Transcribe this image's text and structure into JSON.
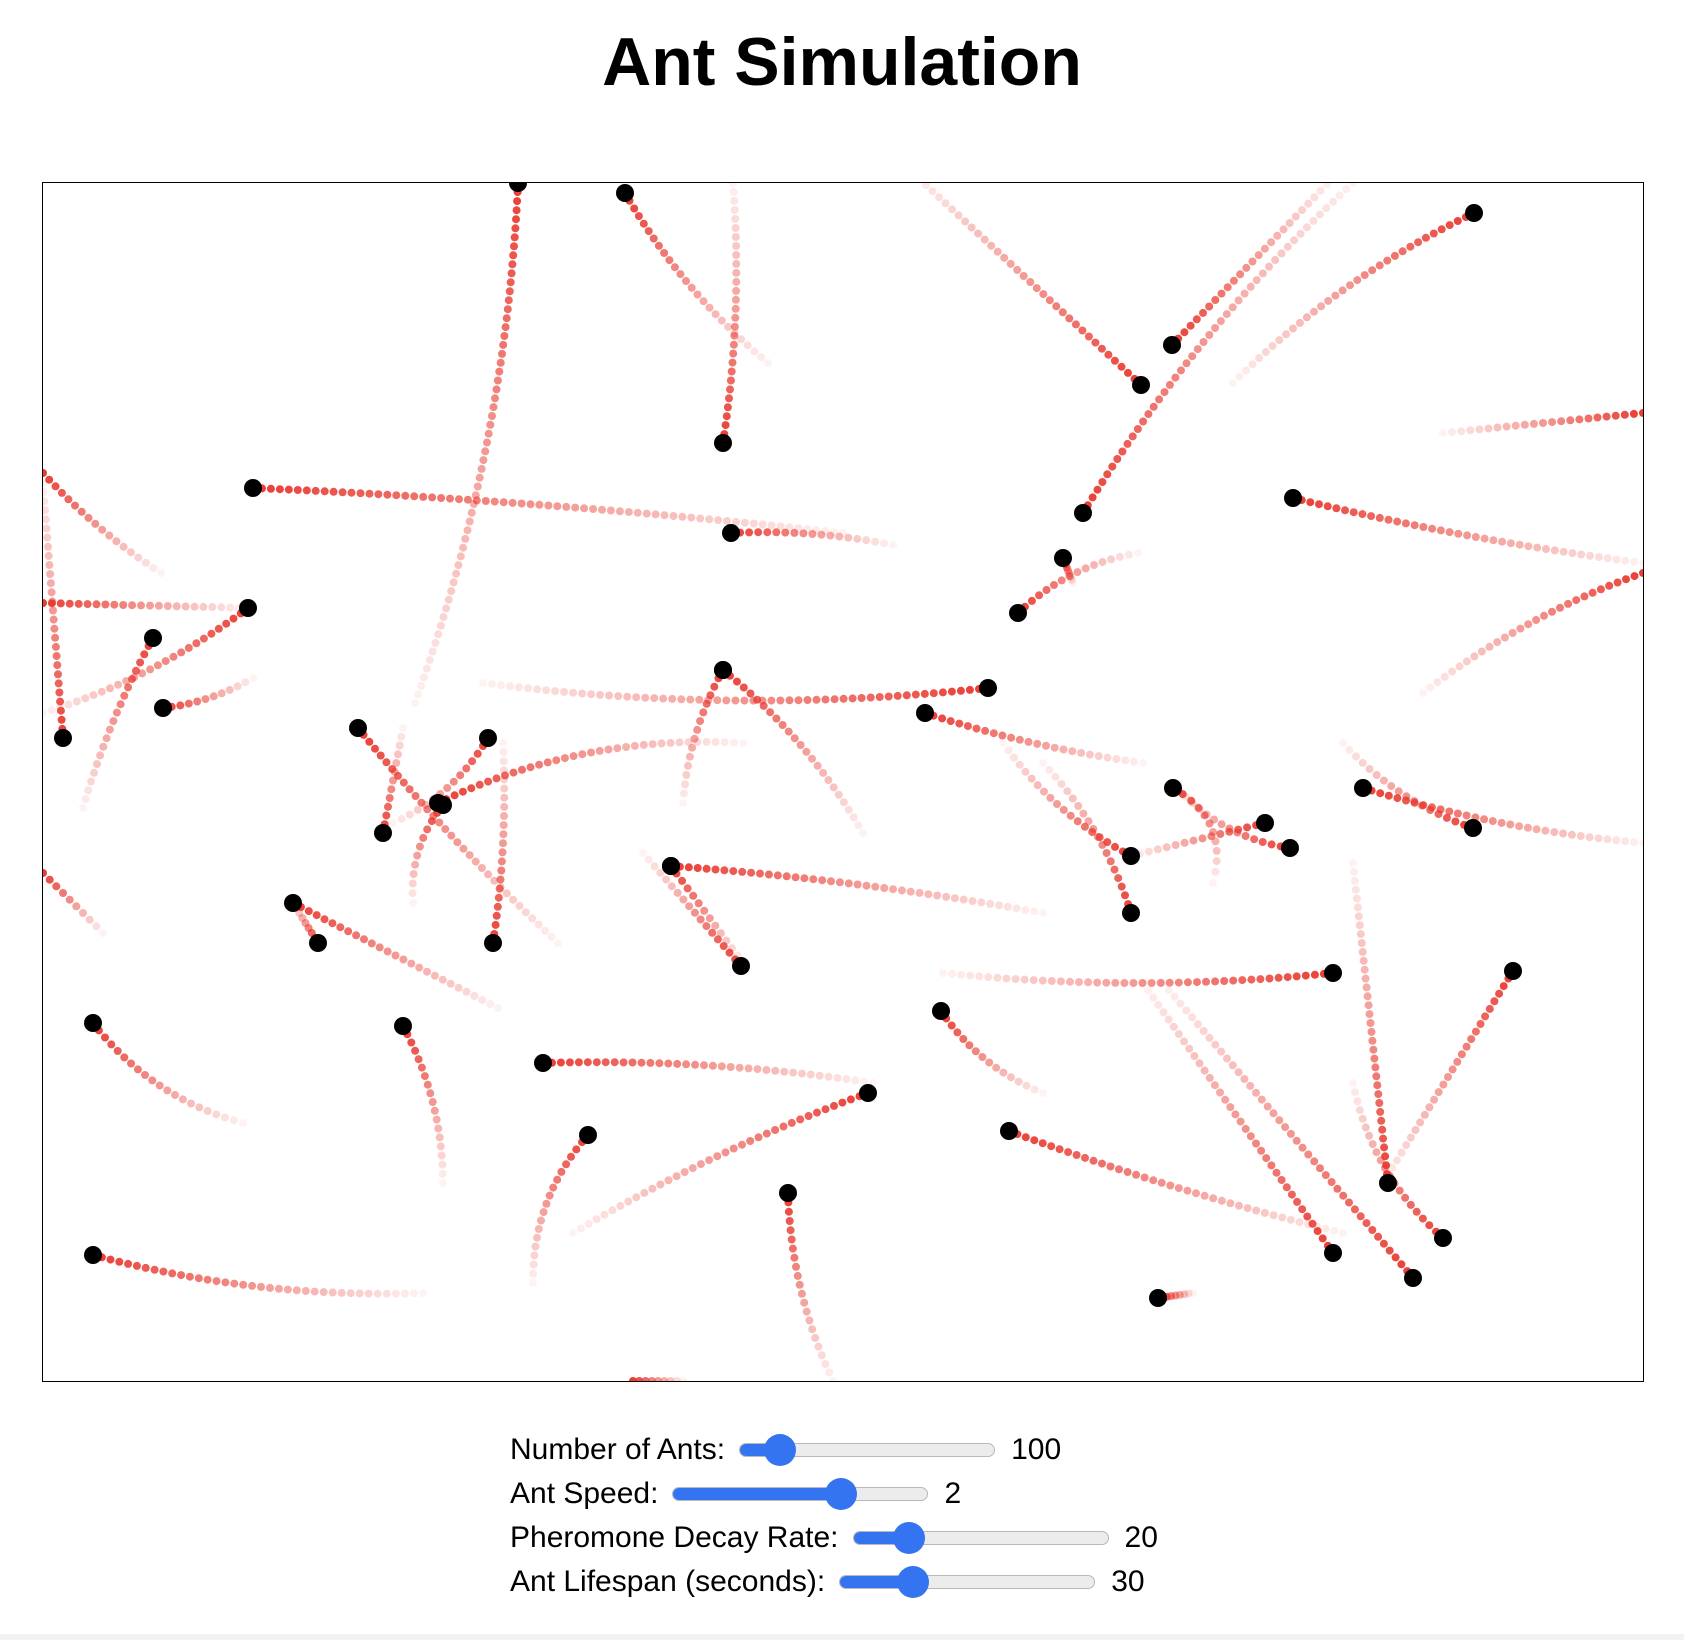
{
  "title": "Ant Simulation",
  "colors": {
    "trail": "#e8352b",
    "ant": "#000000",
    "slider_accent": "#3574f0"
  },
  "controls": [
    {
      "id": "ants",
      "label": "Number of Ants:",
      "value": "100",
      "fraction": 0.16
    },
    {
      "id": "speed",
      "label": "Ant Speed:",
      "value": "2",
      "fraction": 0.66
    },
    {
      "id": "decay",
      "label": "Pheromone Decay Rate:",
      "value": "20",
      "fraction": 0.22
    },
    {
      "id": "lifespan",
      "label": "Ant Lifespan (seconds):",
      "value": "30",
      "fraction": 0.29
    }
  ]
}
